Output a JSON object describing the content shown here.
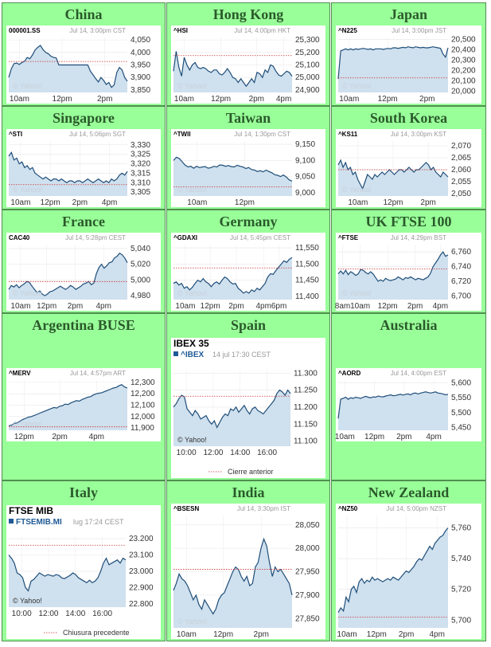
{
  "colors": {
    "cell_bg": "#99ff99",
    "title": "#2b5a2b",
    "line": "#1f4e79",
    "area": "#cfe0ee",
    "ref": "#cc3333"
  },
  "chart_data": [
    {
      "type": "area",
      "title": "China",
      "symbol": "000001.SS",
      "meta": "Jul 14, 3:00pm CST",
      "watermark": "© Yahoo!",
      "xticks": [
        "10am",
        "12pm",
        "2pm"
      ],
      "xtickpos": [
        0.09,
        0.45,
        0.81
      ],
      "yticks": [
        "4,050",
        "4,000",
        "3,950",
        "3,900",
        "3,850"
      ],
      "ylim": [
        3840,
        4060
      ],
      "ref": 3964,
      "values": [
        3900,
        3935,
        3955,
        3958,
        3952,
        3960,
        3965,
        3980,
        3975,
        3990,
        4010,
        4020,
        4028,
        4012,
        4000,
        3995,
        3985,
        3980,
        3978,
        3950,
        3950,
        3950,
        3950,
        3950,
        3950,
        3950,
        3950,
        3950,
        3950,
        3950,
        3950,
        3925,
        3910,
        3895,
        3882,
        3900,
        3888,
        3872,
        3880,
        3860,
        3870,
        3920,
        3940,
        3930,
        3900,
        3885
      ]
    },
    {
      "type": "area",
      "title": "Hong Kong",
      "symbol": "^HSI",
      "meta": "Jul 14, 4:00pm HKT",
      "watermark": "© Yahoo!",
      "xticks": [
        "10am",
        "12pm",
        "2pm",
        "4pm"
      ],
      "xtickpos": [
        0.09,
        0.4,
        0.7,
        0.93
      ],
      "yticks": [
        "25,300",
        "25,200",
        "25,100",
        "25,000",
        "24,900"
      ],
      "ylim": [
        24880,
        25320
      ],
      "ref": 25175,
      "values": [
        25050,
        25210,
        25080,
        25010,
        25160,
        25100,
        25060,
        25100,
        25120,
        25080,
        25070,
        25080,
        25070,
        25050,
        25040,
        25060,
        25060,
        25030,
        25020,
        25040,
        25070,
        25040,
        25000,
        24990,
        24960,
        24990,
        24960,
        24930,
        24960,
        24990,
        24960,
        25040,
        25030,
        25000,
        25060,
        25040,
        25100,
        25090,
        25050,
        25020,
        25010,
        25030,
        25050,
        25040,
        25010
      ]
    },
    {
      "type": "area",
      "title": "Japan",
      "symbol": "^N225",
      "meta": "Jul 14, 3:00pm JST",
      "watermark": "© Yahoo!",
      "xticks": [
        "10am",
        "12pm",
        "2pm"
      ],
      "xtickpos": [
        0.1,
        0.45,
        0.81
      ],
      "yticks": [
        "20,500",
        "20,400",
        "20,300",
        "20,200",
        "20,100",
        "20,000"
      ],
      "ylim": [
        19990,
        20520
      ],
      "ref": 20130,
      "values": [
        20120,
        20390,
        20400,
        20410,
        20400,
        20410,
        20400,
        20410,
        20405,
        20410,
        20415,
        20410,
        20405,
        20410,
        20400,
        20410,
        20410,
        20410,
        20405,
        20410,
        20415,
        20410,
        20420,
        20420,
        20415,
        20420,
        20425,
        20420,
        20430,
        20425,
        20420,
        20430,
        20425,
        20420,
        20425,
        20420,
        20420,
        20425,
        20430,
        20425,
        20420,
        20415,
        20360,
        20330,
        20420
      ]
    },
    {
      "type": "area",
      "title": "Singapore",
      "symbol": "^STI",
      "meta": "Jul 14, 5:06pm SGT",
      "watermark": "© Yahoo!",
      "xticks": [
        "10am",
        "12pm",
        "2pm",
        "4pm"
      ],
      "xtickpos": [
        0.1,
        0.35,
        0.6,
        0.85
      ],
      "yticks": [
        "3,330",
        "3,325",
        "3,320",
        "3,315",
        "3,310",
        "3,305"
      ],
      "ylim": [
        3303,
        3332
      ],
      "ref": 3309,
      "values": [
        3324,
        3326,
        3322,
        3323,
        3320,
        3321,
        3318,
        3319,
        3317,
        3318,
        3315,
        3314,
        3313,
        3312,
        3313,
        3312,
        3311,
        3312,
        3312,
        3311,
        3312,
        3311,
        3310,
        3311,
        3311,
        3310,
        3311,
        3311,
        3310,
        3311,
        3312,
        3311,
        3310,
        3311,
        3312,
        3311,
        3310,
        3311,
        3310,
        3312,
        3311,
        3312,
        3314,
        3315,
        3314,
        3316
      ]
    },
    {
      "type": "area",
      "title": "Taiwan",
      "symbol": "^TWII",
      "meta": "Jul 14, 1:30pm CST",
      "watermark": "© Yahoo!",
      "xticks": [
        "10am",
        "12pm"
      ],
      "xtickpos": [
        0.2,
        0.6
      ],
      "yticks": [
        "9,150",
        "9,100",
        "9,050",
        "9,000"
      ],
      "ylim": [
        8990,
        9160
      ],
      "ref": 9018,
      "values": [
        9100,
        9110,
        9106,
        9096,
        9086,
        9080,
        9082,
        9076,
        9082,
        9078,
        9080,
        9081,
        9076,
        9078,
        9082,
        9080,
        9086,
        9085,
        9082,
        9084,
        9081,
        9080,
        9085,
        9082,
        9080,
        9075,
        9078,
        9072,
        9070,
        9066,
        9068,
        9065,
        9070,
        9066,
        9062,
        9056,
        9054,
        9050,
        9055,
        9049,
        9040,
        9036
      ]
    },
    {
      "type": "area",
      "title": "South Korea",
      "symbol": "^KS11",
      "meta": "Jul 14, 3:00pm KST",
      "watermark": "© Yahoo!",
      "xticks": [
        "10am",
        "12pm",
        "2pm"
      ],
      "xtickpos": [
        0.18,
        0.5,
        0.82
      ],
      "yticks": [
        "2,070",
        "2,065",
        "2,060",
        "2,055",
        "2,050"
      ],
      "ylim": [
        2049,
        2072
      ],
      "ref": 2060,
      "values": [
        2062,
        2064,
        2061,
        2063,
        2060,
        2061,
        2058,
        2059,
        2056,
        2054,
        2052,
        2055,
        2058,
        2057,
        2056,
        2058,
        2057,
        2058,
        2059,
        2058,
        2059,
        2060,
        2059,
        2058,
        2059,
        2060,
        2060,
        2059,
        2060,
        2061,
        2060,
        2059,
        2060,
        2060,
        2061,
        2062,
        2063,
        2062,
        2060,
        2061,
        2059,
        2058,
        2057,
        2059,
        2058,
        2057
      ]
    },
    {
      "type": "area",
      "title": "France",
      "symbol": "CAC40",
      "meta": "Jul 14, 5:28pm CEST",
      "watermark": "© Yahoo!",
      "xticks": [
        "10am",
        "12pm",
        "2pm",
        "4pm"
      ],
      "xtickpos": [
        0.1,
        0.32,
        0.56,
        0.8
      ],
      "yticks": [
        "5,040",
        "5,020",
        "5,000",
        "4,980"
      ],
      "ylim": [
        4975,
        5045
      ],
      "ref": 4998,
      "values": [
        4988,
        4993,
        4991,
        4994,
        4990,
        4993,
        4995,
        4998,
        4997,
        4992,
        4988,
        4984,
        4986,
        4982,
        4980,
        4982,
        4985,
        4986,
        4988,
        4990,
        4992,
        4990,
        4988,
        4990,
        4993,
        4991,
        4988,
        4990,
        4992,
        4995,
        4996,
        4998,
        4994,
        4996,
        5008,
        5016,
        5020,
        5015,
        5018,
        5022,
        5023,
        5028,
        5030,
        5034,
        5032,
        5028,
        5022
      ]
    },
    {
      "type": "area",
      "title": "Germany",
      "symbol": "^GDAXI",
      "meta": "Jul 14, 5:45pm CEST",
      "watermark": "© Yahoo!",
      "xticks": [
        "10am",
        "12pm",
        "2pm",
        "4pm",
        "6pm"
      ],
      "xtickpos": [
        0.1,
        0.31,
        0.53,
        0.76,
        0.89
      ],
      "yticks": [
        "11,550",
        "11,500",
        "11,450",
        "11,400"
      ],
      "ylim": [
        11390,
        11560
      ],
      "ref": 11488,
      "values": [
        11440,
        11445,
        11435,
        11440,
        11425,
        11430,
        11420,
        11428,
        11440,
        11450,
        11445,
        11455,
        11445,
        11440,
        11430,
        11440,
        11445,
        11438,
        11450,
        11460,
        11455,
        11445,
        11438,
        11440,
        11425,
        11418,
        11410,
        11415,
        11410,
        11420,
        11415,
        11425,
        11420,
        11430,
        11440,
        11460,
        11470,
        11468,
        11480,
        11490,
        11500,
        11510,
        11505,
        11515,
        11520
      ]
    },
    {
      "type": "area",
      "title": "UK FTSE 100",
      "symbol": "^FTSE",
      "meta": "Jul 14, 4:29pm BST",
      "watermark": "© Yahoo!",
      "xticks": [
        "8am",
        "10am",
        "12pm",
        "2pm",
        "4pm"
      ],
      "xtickpos": [
        0.04,
        0.2,
        0.45,
        0.7,
        0.93
      ],
      "yticks": [
        "6,760",
        "6,740",
        "6,720",
        "6,700"
      ],
      "ylim": [
        6695,
        6770
      ],
      "ref": 6737,
      "values": [
        6730,
        6734,
        6730,
        6735,
        6729,
        6733,
        6731,
        6728,
        6730,
        6736,
        6735,
        6732,
        6730,
        6733,
        6730,
        6725,
        6720,
        6722,
        6720,
        6724,
        6722,
        6721,
        6722,
        6723,
        6726,
        6724,
        6722,
        6725,
        6724,
        6726,
        6724,
        6722,
        6724,
        6723,
        6722,
        6724,
        6726,
        6731,
        6740,
        6745,
        6750,
        6756,
        6760,
        6754,
        6756
      ]
    },
    {
      "type": "area",
      "title": "Argentina BUSE",
      "symbol": "^MERV",
      "meta": "Jul 14, 4:57pm ART",
      "watermark": "© Yahoo!",
      "xticks": [
        "12pm",
        "2pm",
        "4pm"
      ],
      "xtickpos": [
        0.13,
        0.43,
        0.74
      ],
      "yticks": [
        "12,300",
        "12,200",
        "12,100",
        "12,000",
        "11,900"
      ],
      "ylim": [
        11880,
        12320
      ],
      "ref": 11910,
      "values": [
        11920,
        11925,
        11940,
        11945,
        11960,
        11975,
        11985,
        11995,
        12000,
        12010,
        12020,
        12030,
        12040,
        12050,
        12060,
        12070,
        12080,
        12075,
        12090,
        12095,
        12110,
        12105,
        12120,
        12130,
        12140,
        12135,
        12150,
        12160,
        12170,
        12175,
        12190,
        12200,
        12205,
        12210,
        12220,
        12230,
        12240,
        12250,
        12255,
        12270,
        12280,
        12260,
        12250
      ]
    },
    {
      "type": "area",
      "title": "Spain",
      "header": "IBEX 35",
      "symbol": "^IBEX",
      "meta": "14 jul 17:30 CEST",
      "watermark": "© Yahoo!",
      "legend": "Cierre anterior",
      "xticks": [
        "10:00",
        "12:00",
        "14:00",
        "16:00"
      ],
      "xtickpos": [
        0.11,
        0.34,
        0.57,
        0.8
      ],
      "yticks": [
        "11.300",
        "11.250",
        "11.200",
        "11.150",
        "11.100"
      ],
      "ylim": [
        11085,
        11310
      ],
      "ref": 11232,
      "values": [
        11200,
        11210,
        11225,
        11235,
        11230,
        11195,
        11185,
        11175,
        11190,
        11180,
        11165,
        11170,
        11175,
        11160,
        11150,
        11160,
        11140,
        11155,
        11170,
        11180,
        11175,
        11195,
        11190,
        11200,
        11185,
        11195,
        11205,
        11190,
        11180,
        11195,
        11200,
        11190,
        11185,
        11180,
        11190,
        11200,
        11210,
        11220,
        11240,
        11250,
        11245,
        11235,
        11250,
        11240
      ]
    },
    {
      "type": "area",
      "title": "Australia",
      "symbol": "^AORD",
      "meta": "Jul 14, 4:00pm EST",
      "watermark": "",
      "xticks": [
        "10am",
        "12pm",
        "2pm",
        "4pm"
      ],
      "xtickpos": [
        0.06,
        0.33,
        0.6,
        0.87
      ],
      "yticks": [
        "5,600",
        "5,550",
        "5,500",
        "5,450"
      ],
      "ylim": [
        5440,
        5610
      ],
      "ref": null,
      "values": [
        5480,
        5545,
        5548,
        5552,
        5545,
        5550,
        5548,
        5552,
        5550,
        5548,
        5552,
        5555,
        5552,
        5550,
        5553,
        5552,
        5556,
        5554,
        5553,
        5556,
        5558,
        5560,
        5557,
        5558,
        5560,
        5562,
        5559,
        5562,
        5563,
        5560,
        5565,
        5566,
        5563,
        5566,
        5568,
        5570,
        5568,
        5566,
        5568,
        5570,
        5566,
        5565,
        5563,
        5560,
        5562
      ]
    },
    {
      "type": "area",
      "title": "Italy",
      "header": "FTSE MIB",
      "symbol": "FTSEMIB.MI",
      "meta": "lug 17:24 CEST",
      "watermark": "© Yahoo!",
      "legend": "Chiusura precedente",
      "xticks": [
        "10:00",
        "12:00",
        "14:00",
        "16:00"
      ],
      "xtickpos": [
        0.11,
        0.34,
        0.57,
        0.8
      ],
      "yticks": [
        "23.200",
        "23.100",
        "23.000",
        "22.900",
        "22.800"
      ],
      "ylim": [
        22780,
        23210
      ],
      "ref": 23160,
      "values": [
        23100,
        23080,
        23050,
        22990,
        22980,
        22960,
        22900,
        22880,
        22940,
        22950,
        22970,
        22990,
        22980,
        22970,
        22980,
        22975,
        22970,
        22980,
        22975,
        22960,
        22955,
        22965,
        22975,
        22990,
        22980,
        22960,
        22950,
        22940,
        22930,
        22945,
        22930,
        22940,
        22960,
        23000,
        23050,
        23080,
        23040,
        23050,
        23060,
        23070,
        23050,
        23080,
        23070
      ]
    },
    {
      "type": "area",
      "title": "India",
      "symbol": "^BSESN",
      "meta": "Jul 14, 3:30pm IST",
      "watermark": "© Yahoo!",
      "xticks": [
        "10am",
        "12pm",
        "2pm"
      ],
      "xtickpos": [
        0.11,
        0.42,
        0.74
      ],
      "yticks": [
        "28,050",
        "28,000",
        "27,950",
        "27,900",
        "27,850"
      ],
      "ylim": [
        27830,
        28070
      ],
      "ref": 27955,
      "values": [
        27910,
        27925,
        27945,
        27935,
        27930,
        27920,
        27905,
        27890,
        27900,
        27880,
        27870,
        27890,
        27880,
        27870,
        27860,
        27870,
        27890,
        27900,
        27905,
        27920,
        27935,
        27950,
        27960,
        27955,
        27940,
        27930,
        27940,
        27920,
        27925,
        27960,
        27970,
        28000,
        28020,
        28005,
        27970,
        27940,
        27960,
        27950,
        27955,
        27945,
        27935,
        27925,
        27900
      ]
    },
    {
      "type": "area",
      "title": "New Zealand",
      "symbol": "^NZ50",
      "meta": "Jul 14, 5:00pm NZST",
      "watermark": "",
      "xticks": [
        "10am",
        "12pm",
        "2pm",
        "4pm"
      ],
      "xtickpos": [
        0.08,
        0.35,
        0.62,
        0.9
      ],
      "yticks": [
        "5,760",
        "5,740",
        "5,720",
        "5,700"
      ],
      "ylim": [
        5695,
        5768
      ],
      "ref": 5702,
      "values": [
        5705,
        5708,
        5706,
        5715,
        5712,
        5720,
        5722,
        5718,
        5725,
        5727,
        5724,
        5726,
        5725,
        5728,
        5726,
        5727,
        5726,
        5725,
        5726,
        5727,
        5726,
        5728,
        5727,
        5726,
        5728,
        5730,
        5732,
        5731,
        5733,
        5735,
        5738,
        5740,
        5739,
        5742,
        5745,
        5748,
        5746,
        5750,
        5752,
        5754,
        5755,
        5758,
        5760
      ]
    }
  ]
}
